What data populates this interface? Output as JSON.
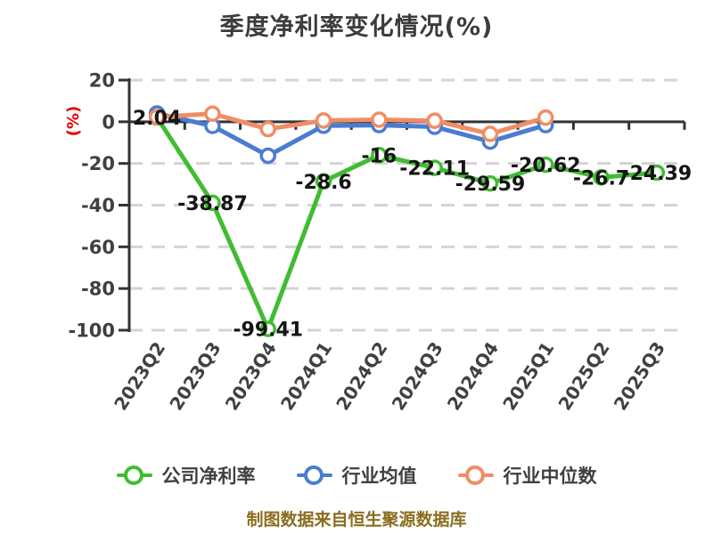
{
  "footer": {
    "text": "制图数据来自恒生聚源数据库"
  },
  "colors": {
    "axis": "#333333",
    "grid": "#d4d4d4",
    "tick_label": "#404040",
    "data_label": "#151515",
    "title": "#3c3c3c",
    "footer": "#8a6d1e",
    "y_unit": "#e60000",
    "company_green": "#41bc32",
    "industry_blue": "#4a7cd2",
    "median_orange": "#f18d64"
  },
  "chart_data": {
    "type": "line",
    "title": "季度净利率变化情况(%)",
    "ylabel": "(%)",
    "categories": [
      "2023Q2",
      "2023Q3",
      "2023Q4",
      "2024Q1",
      "2024Q2",
      "2024Q3",
      "2024Q4",
      "2025Q1",
      "2025Q2",
      "2025Q3"
    ],
    "series": [
      {
        "name": "公司净利率",
        "color": "#41bc32",
        "values": [
          2.04,
          -38.87,
          -99.41,
          -28.6,
          -16,
          -22.11,
          -29.59,
          -20.62,
          -26.7,
          -24.39
        ],
        "labels": [
          "2.04",
          "-38.87",
          "-99.41",
          "-28.6",
          "-16",
          "-22.11",
          "-29.59",
          "-20.62",
          "-26.7",
          "-24.39"
        ],
        "show_labels": true
      },
      {
        "name": "行业均值",
        "color": "#4a7cd2",
        "values": [
          4.0,
          -2.0,
          -16.3,
          -1.9,
          -1.6,
          -2.4,
          -9.5,
          -1.6
        ],
        "show_labels": false
      },
      {
        "name": "行业中位数",
        "color": "#f18d64",
        "values": [
          2.3,
          3.9,
          -3.5,
          0.6,
          1.0,
          0.5,
          -5.8,
          2.0
        ],
        "show_labels": false
      }
    ],
    "ylim": [
      -100,
      20
    ],
    "y_ticks": [
      20,
      0,
      -20,
      -40,
      -60,
      -80,
      -100
    ],
    "grid": true,
    "grid_style": "dashed",
    "legend_position": "bottom",
    "x_label_rotation": -57
  }
}
